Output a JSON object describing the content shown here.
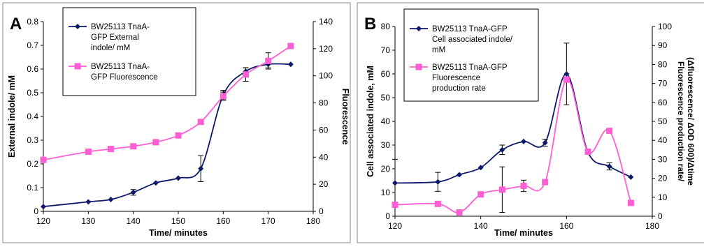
{
  "colors": {
    "series_indole": "#0d1a6b",
    "series_fluor": "#ff5fd2",
    "frame": "#888888"
  },
  "chart_data": [
    {
      "type": "line",
      "panel_label": "A",
      "xlabel": "Time/ minutes",
      "ylabel": "External indole/ mM",
      "y2label": "Fluorescence",
      "xlim": [
        120,
        180
      ],
      "ylim": [
        0,
        0.8
      ],
      "y2lim": [
        0,
        140
      ],
      "xticks": [
        "120",
        "130",
        "140",
        "150",
        "160",
        "170",
        "180"
      ],
      "yticks": [
        "0",
        "0.1",
        "0.2",
        "0.3",
        "0.4",
        "0.5",
        "0.6",
        "0.7",
        "0.8"
      ],
      "y2ticks": [
        "0",
        "20",
        "40",
        "60",
        "80",
        "100",
        "120",
        "140"
      ],
      "legend_placement": "top-left",
      "grid": false,
      "series": [
        {
          "name_lines": [
            "BW25113 TnaA-",
            "GFP External",
            "indole/ mM"
          ],
          "axis": "left",
          "marker": "diamond",
          "x": [
            120,
            130,
            135,
            140,
            145,
            150,
            155,
            160,
            165,
            170,
            175
          ],
          "values": [
            0.02,
            0.04,
            0.05,
            0.08,
            0.12,
            0.14,
            0.18,
            0.49,
            0.59,
            0.62,
            0.62
          ],
          "errors": [
            0,
            0,
            0,
            0.012,
            0,
            0,
            0.055,
            0.02,
            0.015,
            0.015,
            0
          ]
        },
        {
          "name_lines": [
            "BW25113 TnaA-",
            "GFP Fluorescence"
          ],
          "axis": "right",
          "marker": "square",
          "x": [
            120,
            130,
            135,
            140,
            145,
            150,
            155,
            160,
            165,
            170,
            175
          ],
          "values": [
            38,
            44,
            46,
            48,
            51,
            56,
            66,
            85,
            101,
            111,
            122
          ],
          "errors": [
            0,
            0,
            0,
            0,
            0,
            0,
            0,
            3,
            5,
            6,
            0
          ]
        }
      ]
    },
    {
      "type": "line",
      "panel_label": "B",
      "xlabel": "Time/ minutes",
      "ylabel": "Cell associated indole, mM",
      "y2label_lines": [
        "Fluorescence production rate/",
        "(Δfluorescence/ ΔOD 600)/Δtime"
      ],
      "xlim": [
        120,
        180
      ],
      "ylim": [
        0,
        80
      ],
      "y2lim": [
        0,
        100
      ],
      "xticks": [
        "120",
        "140",
        "160",
        "180"
      ],
      "yticks": [
        "0",
        "10",
        "20",
        "30",
        "40",
        "50",
        "60",
        "70",
        "80"
      ],
      "y2ticks": [
        "0",
        "10",
        "20",
        "30",
        "40",
        "50",
        "60",
        "70",
        "80",
        "90",
        "100"
      ],
      "legend_placement": "top-left",
      "grid": false,
      "series": [
        {
          "name_lines": [
            "BW25113 TnaA-GFP",
            "Cell associated indole/",
            "mM"
          ],
          "axis": "left",
          "marker": "diamond",
          "x": [
            120,
            130,
            135,
            140,
            145,
            150,
            155,
            160,
            165,
            170,
            175
          ],
          "values": [
            14,
            14.5,
            17.5,
            20.5,
            28,
            31.5,
            31,
            60,
            27,
            21,
            16.5
          ],
          "errors": [
            10,
            4,
            0,
            0,
            2,
            0,
            1.5,
            13,
            0,
            1.5,
            0
          ]
        },
        {
          "name_lines": [
            "BW25113 TnaA-GFP",
            "Fluorescence",
            "production rate"
          ],
          "axis": "right",
          "marker": "square",
          "x": [
            120,
            130,
            135,
            140,
            145,
            150,
            155,
            160,
            165,
            170,
            175
          ],
          "values": [
            6,
            6.5,
            2,
            11.5,
            14,
            16,
            18,
            72,
            34,
            45,
            7
          ],
          "errors": [
            0,
            0,
            0,
            0,
            12,
            3,
            0,
            0,
            0,
            0,
            0
          ]
        }
      ]
    }
  ]
}
